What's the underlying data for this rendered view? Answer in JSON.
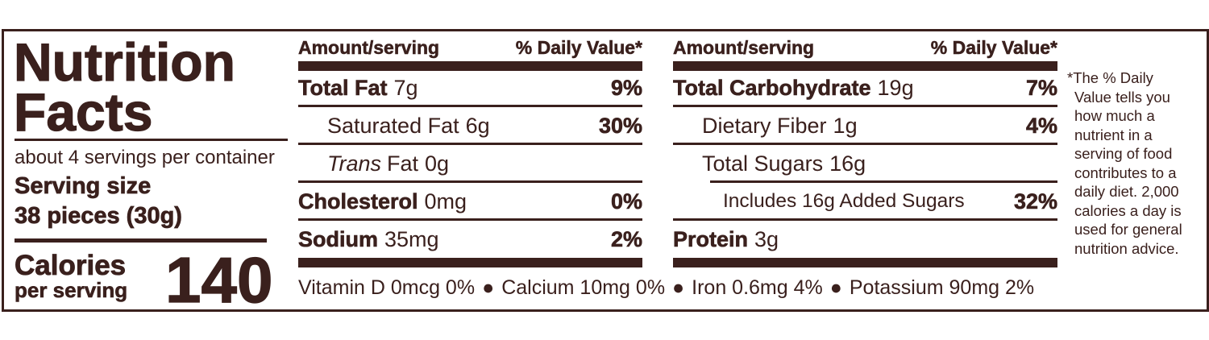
{
  "header": {
    "title_lines": [
      "Nutrition",
      "Facts"
    ],
    "servings_per_container": "about 4 servings per container",
    "serving_size": {
      "label": "Serving size",
      "value": "38 pieces (30g)"
    },
    "calories": {
      "label_lines": [
        "Calories",
        "per serving"
      ],
      "value": "140"
    }
  },
  "columns": [
    {
      "header": {
        "amount": "Amount/serving",
        "daily_value": "% Daily Value*"
      },
      "rows": [
        {
          "name": "Total Fat",
          "amount": "7g",
          "dv": "9%"
        },
        {
          "name": "Saturated Fat",
          "amount": "6g",
          "dv": "30%"
        },
        {
          "italic_prefix": "Trans",
          "name": "Fat",
          "amount": "0g"
        },
        {
          "name": "Cholesterol",
          "amount": "0mg",
          "dv": "0%"
        },
        {
          "name": "Sodium",
          "amount": "35mg",
          "dv": "2%"
        }
      ]
    },
    {
      "header": {
        "amount": "Amount/serving",
        "daily_value": "% Daily Value*"
      },
      "rows": [
        {
          "name": "Total Carbohydrate",
          "amount": "19g",
          "dv": "7%"
        },
        {
          "name": "Dietary Fiber",
          "amount": "1g",
          "dv": "4%"
        },
        {
          "name": "Total Sugars",
          "amount": "16g"
        },
        {
          "name": "Includes 16g Added Sugars",
          "dv": "32%"
        },
        {
          "name": "Protein",
          "amount": "3g"
        }
      ]
    }
  ],
  "vitamins": [
    "Vitamin D 0mcg 0%",
    "Calcium 10mg 0%",
    "Iron 0.6mg 4%",
    "Potassium 90mg 2%"
  ],
  "footnote_lines": [
    "*The % Daily",
    "Value tells you",
    "how much a",
    "nutrient in a",
    "serving of food",
    "contributes to a",
    "daily diet. 2,000",
    "calories a day is",
    "used for general",
    "nutrition advice."
  ]
}
